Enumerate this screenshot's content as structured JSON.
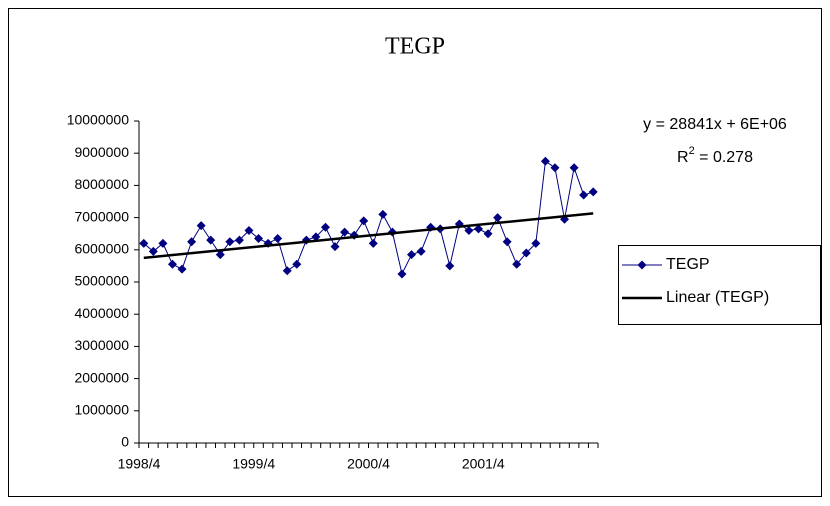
{
  "chart_data": {
    "type": "line",
    "title": "TEGP",
    "categories": [
      "1998/4",
      null,
      null,
      null,
      null,
      null,
      null,
      null,
      null,
      null,
      null,
      null,
      "1999/4",
      null,
      null,
      null,
      null,
      null,
      null,
      null,
      null,
      null,
      null,
      null,
      "2000/4",
      null,
      null,
      null,
      null,
      null,
      null,
      null,
      null,
      null,
      null,
      null,
      "2001/4",
      null,
      null,
      null,
      null,
      null,
      null,
      null,
      null,
      null,
      null,
      null
    ],
    "series": [
      {
        "name": "TEGP",
        "color": "#000080",
        "values": [
          6200000,
          5950000,
          6200000,
          5550000,
          5400000,
          6250000,
          6750000,
          6300000,
          5850000,
          6250000,
          6300000,
          6600000,
          6350000,
          6200000,
          6350000,
          5350000,
          5550000,
          6300000,
          6400000,
          6700000,
          6100000,
          6550000,
          6450000,
          6900000,
          6200000,
          7100000,
          6550000,
          5250000,
          5850000,
          5950000,
          6700000,
          6650000,
          5500000,
          6800000,
          6600000,
          6650000,
          6500000,
          7000000,
          6250000,
          5550000,
          5900000,
          6200000,
          8750000,
          8550000,
          6950000,
          8550000,
          7700000,
          7800000
        ]
      }
    ],
    "trendline": {
      "name": "Linear (TEGP)",
      "color": "#000000",
      "values": [
        5750000,
        7130000
      ]
    },
    "equation": "y = 28841x + 6E+06",
    "r_squared": {
      "base": "R",
      "sup": "2",
      "rest": " = 0.278"
    },
    "ylim": [
      0,
      10000000
    ],
    "yticks": [
      0,
      1000000,
      2000000,
      3000000,
      4000000,
      5000000,
      6000000,
      7000000,
      8000000,
      9000000,
      10000000
    ],
    "grid": false,
    "legend": "right"
  }
}
